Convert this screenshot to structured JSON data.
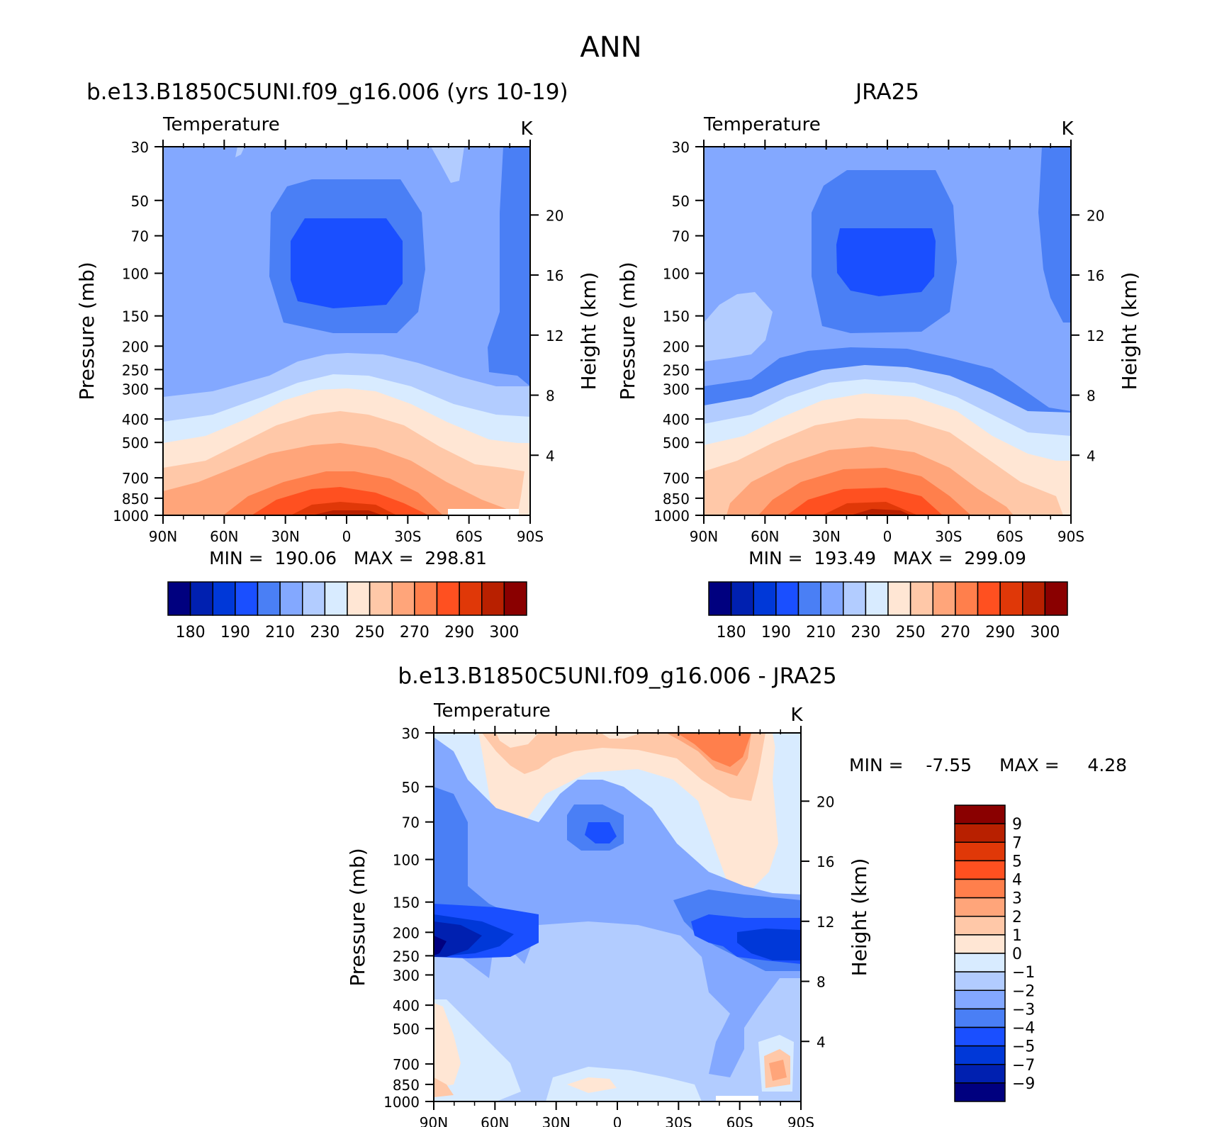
{
  "page": {
    "title": "ANN"
  },
  "colors": {
    "abs": [
      "#00007f",
      "#0020b0",
      "#0038d8",
      "#1a4fff",
      "#4a7ff5",
      "#83a8ff",
      "#b2ccff",
      "#d8ebff",
      "#ffe6d4",
      "#ffc8a8",
      "#ffa57a",
      "#ff7f4c",
      "#ff5020",
      "#e03808",
      "#b82000",
      "#8a0000"
    ],
    "diff": [
      "#00007f",
      "#0020b0",
      "#0038d8",
      "#1a4fff",
      "#4a7ff5",
      "#83a8ff",
      "#b2ccff",
      "#d8ebff",
      "#ffe6d4",
      "#ffc8a8",
      "#ffa57a",
      "#ff7f4c",
      "#ff5020",
      "#e03808",
      "#b82000",
      "#8a0000"
    ]
  },
  "axes": {
    "pressure_ticks": [
      "30",
      "50",
      "70",
      "100",
      "150",
      "200",
      "250",
      "300",
      "400",
      "500",
      "700",
      "850",
      "1000"
    ],
    "height_ticks": [
      "20",
      "16",
      "12",
      "8",
      "4"
    ],
    "lat_ticks": [
      "90N",
      "60N",
      "30N",
      "0",
      "30S",
      "60S",
      "90S"
    ],
    "ylabel": "Pressure (mb)",
    "y2label": "Height (km)",
    "variable": "Temperature",
    "units": "K"
  },
  "chart_data": [
    {
      "type": "heatmap",
      "title": "b.e13.B1850C5UNI.f09_g16.006 (yrs 10-19)",
      "subtitle": "Temperature",
      "units": "K",
      "xlabel": "",
      "ylabel": "Pressure (mb)",
      "y2label": "Height (km)",
      "x_ticks": [
        "90N",
        "60N",
        "30N",
        "0",
        "30S",
        "60S",
        "90S"
      ],
      "xlim": [
        -90,
        90
      ],
      "ylim": [
        1000,
        30
      ],
      "y_scale": "log",
      "stats": "MIN =  190.06   MAX =  298.81",
      "min": 190.06,
      "max": 298.81,
      "colorbar_labels": [
        "180",
        "190",
        "210",
        "230",
        "250",
        "270",
        "290",
        "300"
      ],
      "colorbar_levels": [
        180,
        185,
        190,
        200,
        210,
        220,
        230,
        240,
        250,
        260,
        270,
        280,
        290,
        295,
        300
      ]
    },
    {
      "type": "heatmap",
      "title": "JRA25",
      "subtitle": "Temperature",
      "units": "K",
      "xlabel": "",
      "ylabel": "Pressure (mb)",
      "y2label": "Height (km)",
      "x_ticks": [
        "90N",
        "60N",
        "30N",
        "0",
        "30S",
        "60S",
        "90S"
      ],
      "xlim": [
        -90,
        90
      ],
      "ylim": [
        1000,
        30
      ],
      "y_scale": "log",
      "stats": "MIN =  193.49   MAX =  299.09",
      "min": 193.49,
      "max": 299.09,
      "colorbar_labels": [
        "180",
        "190",
        "210",
        "230",
        "250",
        "270",
        "290",
        "300"
      ],
      "colorbar_levels": [
        180,
        185,
        190,
        200,
        210,
        220,
        230,
        240,
        250,
        260,
        270,
        280,
        290,
        295,
        300
      ]
    },
    {
      "type": "heatmap",
      "title": "b.e13.B1850C5UNI.f09_g16.006 - JRA25",
      "subtitle": "Temperature",
      "units": "K",
      "xlabel": "",
      "ylabel": "Pressure (mb)",
      "y2label": "Height (km)",
      "x_ticks": [
        "90N",
        "60N",
        "30N",
        "0",
        "30S",
        "60S",
        "90S"
      ],
      "xlim": [
        -90,
        90
      ],
      "ylim": [
        1000,
        30
      ],
      "y_scale": "log",
      "stats_min": "MIN =    -7.55",
      "stats_max": "MAX =     4.28",
      "min": -7.55,
      "max": 4.28,
      "colorbar_labels": [
        "9",
        "7",
        "5",
        "4",
        "3",
        "2",
        "1",
        "0",
        "−1",
        "−2",
        "−3",
        "−4",
        "−5",
        "−7",
        "−9"
      ],
      "colorbar_levels": [
        9,
        7,
        5,
        4,
        3,
        2,
        1,
        0,
        -1,
        -2,
        -3,
        -4,
        -5,
        -7,
        -9
      ]
    }
  ]
}
